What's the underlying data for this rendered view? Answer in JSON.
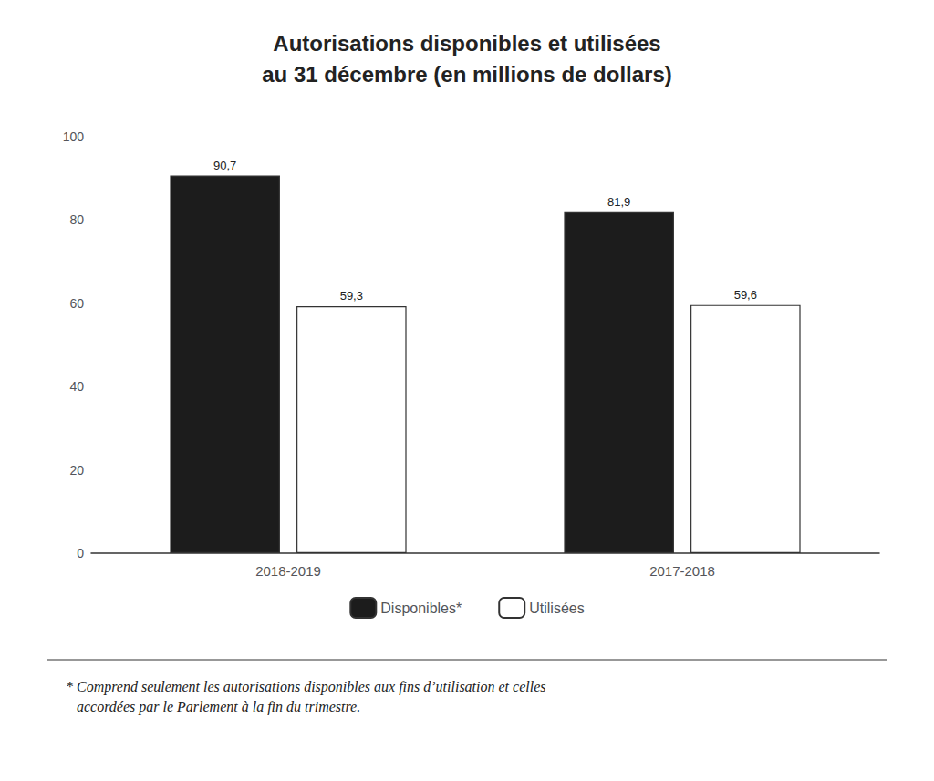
{
  "chart_data": {
    "type": "bar",
    "title": "Autorisations disponibles et utilisées",
    "subtitle": "au 31 décembre (en millions de dollars)",
    "categories": [
      "2018-2019",
      "2017-2018"
    ],
    "series": [
      {
        "name": "Disponibles*",
        "color": "#1c1c1c",
        "values": [
          90.7,
          81.9
        ],
        "value_labels": [
          "90,7",
          "81,9"
        ]
      },
      {
        "name": "Utilisées",
        "color": "#ffffff",
        "values": [
          59.3,
          59.6
        ],
        "value_labels": [
          "59,3",
          "59,6"
        ]
      }
    ],
    "ylim": [
      0,
      100
    ],
    "yticks": [
      0,
      20,
      40,
      60,
      80,
      100
    ],
    "grid": false,
    "legend": "bottom",
    "data_labels": true,
    "annotations": [
      "* Comprend seulement les autorisations disponibles aux fins d’utilisation et celles\n   accordées par le Parlement à la fin du trimestre."
    ]
  }
}
